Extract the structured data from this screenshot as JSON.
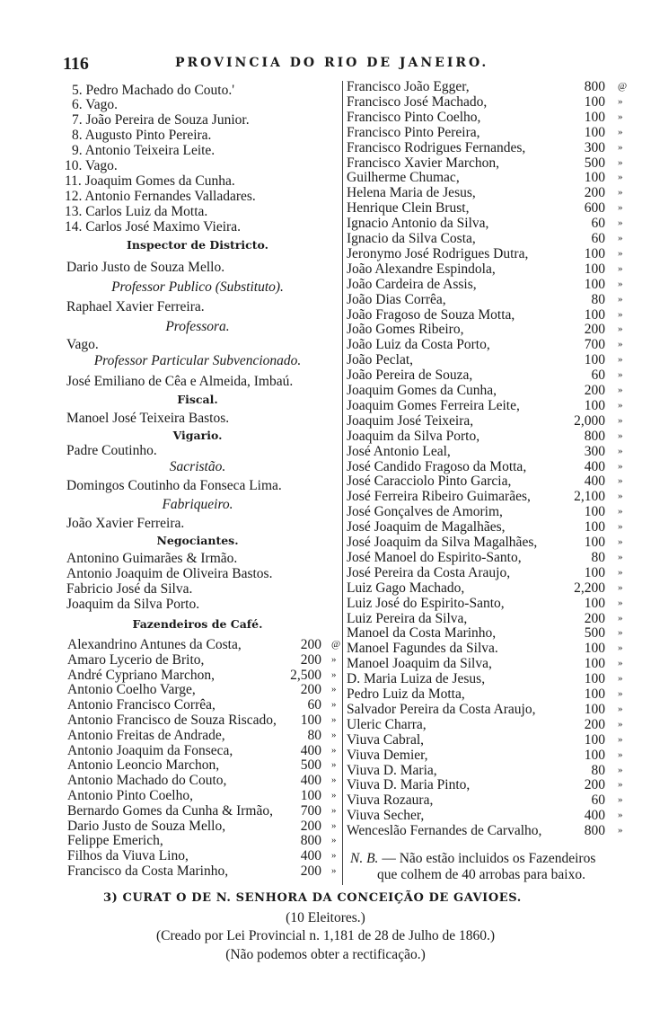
{
  "header": {
    "page_number": "116",
    "title": "PROVINCIA DO RIO DE JANEIRO."
  },
  "left_top": [
    {
      "style": "num",
      "text": "5. Pedro Machado do Couto.'"
    },
    {
      "style": "num",
      "text": "6. Vago."
    },
    {
      "style": "num",
      "text": "7. João Pereira de Souza Junior."
    },
    {
      "style": "num",
      "text": "8. Augusto Pinto Pereira."
    },
    {
      "style": "num",
      "text": "9. Antonio Teixeira Leite."
    },
    {
      "style": "num",
      "text": "10. Vago."
    },
    {
      "style": "num",
      "text": "11. Joaquim Gomes da Cunha."
    },
    {
      "style": "num",
      "text": "12. Antonio Fernandes Valladares."
    },
    {
      "style": "num",
      "text": "13. Carlos Luiz da Motta."
    },
    {
      "style": "num",
      "text": "14. Carlos José Maximo Vieira."
    },
    {
      "style": "bold",
      "text": "Inspector de Districto."
    },
    {
      "style": "plain",
      "text": "Dario Justo de Souza Mello."
    },
    {
      "style": "italic",
      "text": "Professor Publico (Substituto)."
    },
    {
      "style": "plain",
      "text": "Raphael Xavier Ferreira."
    },
    {
      "style": "italic",
      "text": "Professora."
    },
    {
      "style": "plain",
      "text": "Vago."
    },
    {
      "style": "italic",
      "text": "Professor Particular Subvencionado."
    },
    {
      "style": "plain",
      "text": "José Emiliano de Cêa e Almeida, Imbaú."
    },
    {
      "style": "bold",
      "text": "Fiscal."
    },
    {
      "style": "plain",
      "text": "Manoel José Teixeira Bastos."
    },
    {
      "style": "bold",
      "text": "Vigario."
    },
    {
      "style": "plain",
      "text": "Padre Coutinho."
    },
    {
      "style": "italic",
      "text": "Sacristão."
    },
    {
      "style": "plain",
      "text": "Domingos Coutinho da Fonseca Lima."
    },
    {
      "style": "italic",
      "text": "Fabriqueiro."
    },
    {
      "style": "plain",
      "text": "João Xavier Ferreira."
    },
    {
      "style": "bold",
      "text": "Negociantes."
    },
    {
      "style": "plain",
      "text": "Antonino Guimarães & Irmão."
    },
    {
      "style": "plain",
      "text": "Antonio Joaquim de Oliveira Bastos."
    },
    {
      "style": "plain",
      "text": "Fabricio José da Silva."
    },
    {
      "style": "plain",
      "text": "Joaquim da Silva Porto."
    },
    {
      "style": "bold",
      "text": "Fazendeiros de Café."
    }
  ],
  "left_farmers": [
    {
      "name": "Alexandrino Antunes da Costa,",
      "qty": "200",
      "mark": "@"
    },
    {
      "name": "Amaro Lycerio de Brito,",
      "qty": "200",
      "mark": "»"
    },
    {
      "name": "André Cypriano Marchon,",
      "qty": "2,500",
      "mark": "»"
    },
    {
      "name": "Antonio Coelho Varge,",
      "qty": "200",
      "mark": "»"
    },
    {
      "name": "Antonio Francisco Corrêa,",
      "qty": "60",
      "mark": "»"
    },
    {
      "name": "Antonio Francisco de Souza Riscado,",
      "qty": "100",
      "mark": "»"
    },
    {
      "name": "Antonio Freitas de Andrade,",
      "qty": "80",
      "mark": "»"
    },
    {
      "name": "Antonio Joaquim da Fonseca,",
      "qty": "400",
      "mark": "»"
    },
    {
      "name": "Antonio Leoncio Marchon,",
      "qty": "500",
      "mark": "»"
    },
    {
      "name": "Antonio Machado do Couto,",
      "qty": "400",
      "mark": "»"
    },
    {
      "name": "Antonio Pinto Coelho,",
      "qty": "100",
      "mark": "»"
    },
    {
      "name": "Bernardo Gomes da Cunha & Irmão,",
      "qty": "700",
      "mark": "»"
    },
    {
      "name": "Dario Justo de Souza Mello,",
      "qty": "200",
      "mark": "»"
    },
    {
      "name": "Felippe Emerich,",
      "qty": "800",
      "mark": "»"
    },
    {
      "name": "Filhos da Viuva Lino,",
      "qty": "400",
      "mark": "»"
    },
    {
      "name": "Francisco da Costa Marinho,",
      "qty": "200",
      "mark": "»"
    }
  ],
  "right_farmers": [
    {
      "name": "Francisco João Egger,",
      "qty": "800",
      "mark": "@"
    },
    {
      "name": "Francisco José Machado,",
      "qty": "100",
      "mark": "»"
    },
    {
      "name": "Francisco Pinto Coelho,",
      "qty": "100",
      "mark": "»"
    },
    {
      "name": "Francisco Pinto Pereira,",
      "qty": "100",
      "mark": "»"
    },
    {
      "name": "Francisco Rodrigues Fernandes,",
      "qty": "300",
      "mark": "»"
    },
    {
      "name": "Francisco Xavier Marchon,",
      "qty": "500",
      "mark": "»"
    },
    {
      "name": "Guilherme Chumac,",
      "qty": "100",
      "mark": "»"
    },
    {
      "name": "Helena Maria de Jesus,",
      "qty": "200",
      "mark": "»"
    },
    {
      "name": "Henrique Clein Brust,",
      "qty": "600",
      "mark": "»"
    },
    {
      "name": "Ignacio Antonio da Silva,",
      "qty": "60",
      "mark": "»"
    },
    {
      "name": "Ignacio da Silva Costa,",
      "qty": "60",
      "mark": "»"
    },
    {
      "name": "Jeronymo José Rodrigues Dutra,",
      "qty": "100",
      "mark": "»"
    },
    {
      "name": "João Alexandre Espindola,",
      "qty": "100",
      "mark": "»"
    },
    {
      "name": "João Cardeira de Assis,",
      "qty": "100",
      "mark": "»"
    },
    {
      "name": "João Dias Corrêa,",
      "qty": "80",
      "mark": "»"
    },
    {
      "name": "João Fragoso de Souza Motta,",
      "qty": "100",
      "mark": "»"
    },
    {
      "name": "João Gomes Ribeiro,",
      "qty": "200",
      "mark": "»"
    },
    {
      "name": "João Luiz da Costa Porto,",
      "qty": "700",
      "mark": "»"
    },
    {
      "name": "João Peclat,",
      "qty": "100",
      "mark": "»"
    },
    {
      "name": "João Pereira de Souza,",
      "qty": "60",
      "mark": "»"
    },
    {
      "name": "Joaquim Gomes da Cunha,",
      "qty": "200",
      "mark": "»"
    },
    {
      "name": "Joaquim Gomes Ferreira Leite,",
      "qty": "100",
      "mark": "»"
    },
    {
      "name": "Joaquim José Teixeira,",
      "qty": "2,000",
      "mark": "»"
    },
    {
      "name": "Joaquim da Silva Porto,",
      "qty": "800",
      "mark": "»"
    },
    {
      "name": "José Antonio Leal,",
      "qty": "300",
      "mark": "»"
    },
    {
      "name": "José Candido Fragoso da Motta,",
      "qty": "400",
      "mark": "»"
    },
    {
      "name": "José Caracciolo Pinto Garcia,",
      "qty": "400",
      "mark": "»"
    },
    {
      "name": "José Ferreira Ribeiro Guimarães,",
      "qty": "2,100",
      "mark": "»"
    },
    {
      "name": "José Gonçalves de Amorim,",
      "qty": "100",
      "mark": "»"
    },
    {
      "name": "José Joaquim de Magalhães,",
      "qty": "100",
      "mark": "»"
    },
    {
      "name": "José Joaquim da Silva Magalhães,",
      "qty": "100",
      "mark": "»"
    },
    {
      "name": "José Manoel do Espirito-Santo,",
      "qty": "80",
      "mark": "»"
    },
    {
      "name": "José Pereira da Costa Araujo,",
      "qty": "100",
      "mark": "»"
    },
    {
      "name": "Luiz Gago Machado,",
      "qty": "2,200",
      "mark": "»"
    },
    {
      "name": "Luiz José do Espirito-Santo,",
      "qty": "100",
      "mark": "»"
    },
    {
      "name": "Luiz Pereira da Silva,",
      "qty": "200",
      "mark": "»"
    },
    {
      "name": "Manoel da Costa Marinho,",
      "qty": "500",
      "mark": "»"
    },
    {
      "name": "Manoel Fagundes da Silva.",
      "qty": "100",
      "mark": "»"
    },
    {
      "name": "Manoel Joaquim da Silva,",
      "qty": "100",
      "mark": "»"
    },
    {
      "name": "D. Maria Luiza de Jesus,",
      "qty": "100",
      "mark": "»"
    },
    {
      "name": "Pedro Luiz da Motta,",
      "qty": "100",
      "mark": "»"
    },
    {
      "name": "Salvador Pereira da Costa Araujo,",
      "qty": "100",
      "mark": "»"
    },
    {
      "name": "Uleric Charra,",
      "qty": "200",
      "mark": "»"
    },
    {
      "name": "Viuva Cabral,",
      "qty": "100",
      "mark": "»"
    },
    {
      "name": "Viuva Demier,",
      "qty": "100",
      "mark": "»"
    },
    {
      "name": "Viuva D. Maria,",
      "qty": "80",
      "mark": "»"
    },
    {
      "name": "Viuva D. Maria Pinto,",
      "qty": "200",
      "mark": "»"
    },
    {
      "name": "Viuva Rozaura,",
      "qty": "60",
      "mark": "»"
    },
    {
      "name": "Viuva Secher,",
      "qty": "400",
      "mark": "»"
    },
    {
      "name": "Wenceslão Fernandes de Carvalho,",
      "qty": "800",
      "mark": "»"
    }
  ],
  "note": {
    "label": "N. B.",
    "line1": "— Não estão incluidos os Fazendeiros",
    "line2": "que colhem de 40 arrobas para baixo."
  },
  "section": {
    "title": "3) CURAT O DE N. SENHORA DA CONCEIÇÃO DE GAVIOES.",
    "electors": "(10 Eleitores.)",
    "created": "(Creado por Lei Provincial n. 1,181 de 28 de Julho de 1860.)",
    "note": "(Não podemos obter a rectificação.)"
  }
}
